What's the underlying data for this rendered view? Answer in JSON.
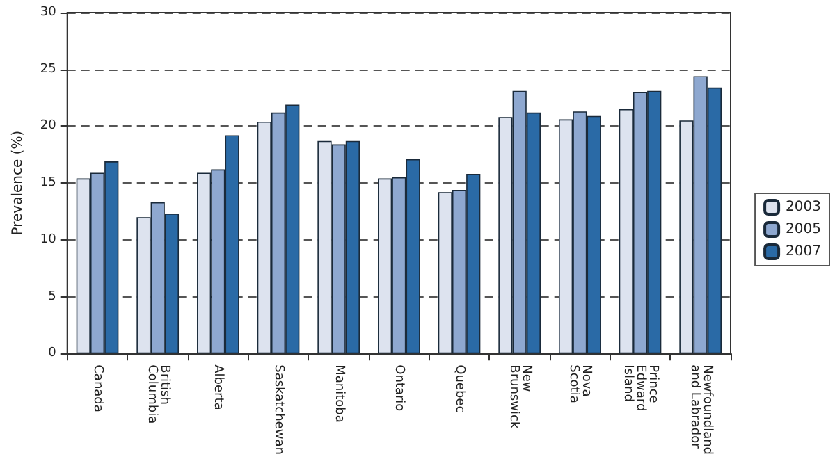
{
  "chart_data": {
    "type": "bar",
    "ylabel": "Prevalence (%)",
    "categories": [
      "Canada",
      "British\nColumbia",
      "Alberta",
      "Saskatchewan",
      "Manitoba",
      "Ontario",
      "Quebec",
      "New\nBrunswick",
      "Nova\nScotia",
      "Prince\nEdward\nIsland",
      "Newfoundland\nand Labrador"
    ],
    "series": [
      {
        "name": "2003",
        "color": "#dde3ef",
        "values": [
          15.4,
          12.0,
          15.9,
          20.4,
          18.7,
          15.4,
          14.2,
          20.8,
          20.6,
          21.5,
          20.5
        ]
      },
      {
        "name": "2005",
        "color": "#8ea8d0",
        "values": [
          15.9,
          13.3,
          16.2,
          21.2,
          18.4,
          15.5,
          14.4,
          23.1,
          21.3,
          23.0,
          24.4
        ]
      },
      {
        "name": "2007",
        "color": "#2a6aa6",
        "values": [
          16.9,
          12.3,
          19.2,
          21.9,
          18.7,
          17.1,
          15.8,
          21.2,
          20.9,
          23.1,
          23.4
        ]
      }
    ],
    "ylim": [
      0,
      30
    ],
    "yticks": [
      0,
      5,
      10,
      15,
      20,
      25,
      30
    ],
    "grid": "y",
    "legend": "right"
  }
}
